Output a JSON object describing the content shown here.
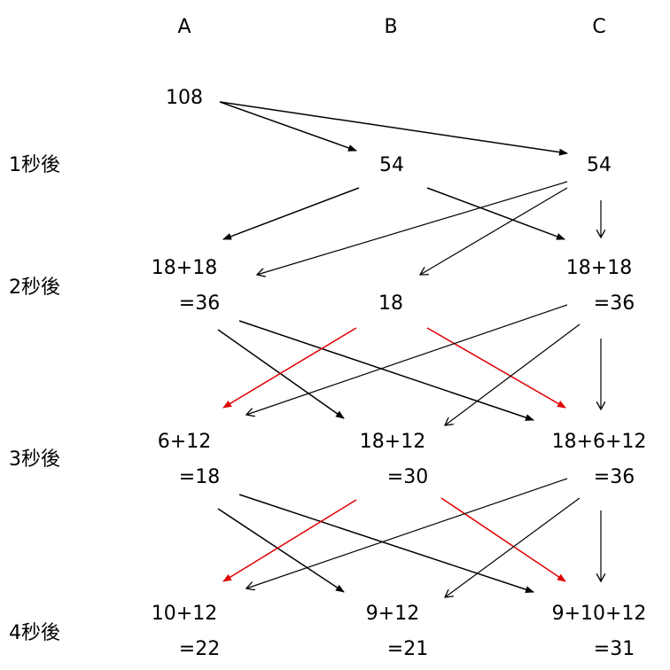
{
  "columns": {
    "a": "A",
    "b": "B",
    "c": "C"
  },
  "rows": {
    "r1": "1秒後",
    "r2": "2秒後",
    "r3": "3秒後",
    "r4": "4秒後"
  },
  "nodes": {
    "start": "108",
    "t1_b": "54",
    "t1_c": "54",
    "t2_a_1": "18+18",
    "t2_a_2": "=36",
    "t2_b": "18",
    "t2_c_1": "18+18",
    "t2_c_2": "=36",
    "t3_a_1": "6+12",
    "t3_a_2": "=18",
    "t3_b_1": "18+12",
    "t3_b_2": "=30",
    "t3_c_1": "18+6+12",
    "t3_c_2": "=36",
    "t4_a_1": "10+12",
    "t4_a_2": "=22",
    "t4_b_1": "9+12",
    "t4_b_2": "=21",
    "t4_c_1": "9+10+12",
    "t4_c_2": "=31"
  },
  "colors": {
    "arrow": "#000000",
    "highlight_arrow": "#e00000"
  }
}
